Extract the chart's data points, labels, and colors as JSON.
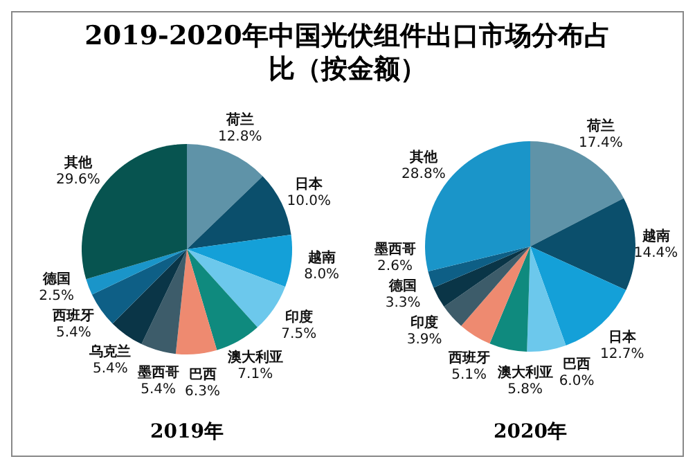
{
  "chart_data": [
    {
      "type": "pie",
      "title": "2019-2020年中国光伏组件出口市场分布占比（按金额）",
      "xlabel": "2019年",
      "categories": [
        "荷兰",
        "日本",
        "越南",
        "印度",
        "澳大利亚",
        "巴西",
        "墨西哥",
        "乌克兰",
        "西班牙",
        "德国",
        "其他"
      ],
      "values": [
        12.8,
        10.0,
        8.0,
        7.5,
        7.1,
        6.3,
        5.4,
        5.4,
        5.4,
        2.5,
        29.6
      ],
      "value_labels": [
        "12.8%",
        "10.0%",
        "8.0%",
        "7.5%",
        "7.1%",
        "6.3%",
        "5.4%",
        "5.4%",
        "5.4%",
        "2.5%",
        "29.6%"
      ],
      "colors": [
        "#5f93a8",
        "#0b4f6c",
        "#14a0d8",
        "#6cc8ec",
        "#0f8a7e",
        "#ee8a70",
        "#3d5c6a",
        "#0a3547",
        "#0e5f86",
        "#1a95c9",
        "#075450"
      ]
    },
    {
      "type": "pie",
      "xlabel": "2020年",
      "categories": [
        "荷兰",
        "越南",
        "日本",
        "巴西",
        "澳大利亚",
        "西班牙",
        "印度",
        "德国",
        "墨西哥",
        "其他"
      ],
      "values": [
        17.4,
        14.4,
        12.7,
        6.0,
        5.8,
        5.1,
        3.9,
        3.3,
        2.6,
        28.8
      ],
      "value_labels": [
        "17.4%",
        "14.4%",
        "12.7%",
        "6.0%",
        "5.8%",
        "5.1%",
        "3.9%",
        "3.3%",
        "2.6%",
        "28.8%"
      ],
      "colors": [
        "#5f93a8",
        "#0b4f6c",
        "#14a0d8",
        "#6cc8ec",
        "#0f8a7e",
        "#ee8a70",
        "#3d5c6a",
        "#0a3547",
        "#0e5f86",
        "#1a95c9"
      ]
    }
  ]
}
